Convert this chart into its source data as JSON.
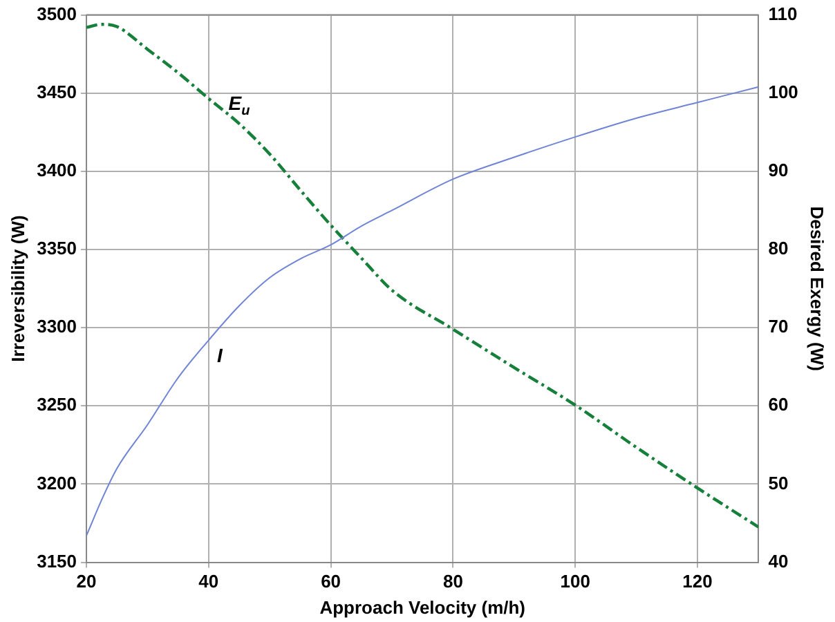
{
  "chart_data": {
    "type": "line",
    "xlabel": "Approach Velocity (m/h)",
    "ylabel": "Irreversibility (W)",
    "y2label": "Desired Exergy (W)",
    "x": [
      20,
      22.5,
      25,
      30,
      35,
      40,
      45,
      50,
      55,
      60,
      65,
      70,
      80,
      90,
      100,
      110,
      120,
      130
    ],
    "series": [
      {
        "color": "#6f84d6",
        "line_style": "solid",
        "axis": "y",
        "values": [
          3167,
          3190,
          3210,
          3238,
          3268,
          3292,
          3314,
          3332,
          3344,
          3353,
          3365,
          3375,
          3395,
          3409,
          3422,
          3434,
          3444,
          3454
        ]
      },
      {
        "color": "#16803a",
        "line_style": "dashed",
        "axis": "y2",
        "values": [
          108.4,
          108.8,
          108.5,
          105.6,
          102.6,
          99.3,
          96.1,
          92.2,
          87.6,
          83.1,
          78.9,
          74.8,
          69.8,
          64.9,
          60.1,
          54.7,
          49.5,
          44.5
        ]
      }
    ],
    "xlim": [
      20,
      130
    ],
    "xticks": [
      20,
      40,
      60,
      80,
      100,
      120
    ],
    "ylim": [
      3150,
      3500
    ],
    "yticks": [
      3150,
      3200,
      3250,
      3300,
      3350,
      3400,
      3450,
      3500
    ],
    "y2lim": [
      40,
      110
    ],
    "y2ticks": [
      40,
      50,
      60,
      70,
      80,
      90,
      100,
      110
    ],
    "annotations": [
      "E$_{u}$",
      "I"
    ],
    "grid": true,
    "legend": false,
    "marker": "none"
  }
}
